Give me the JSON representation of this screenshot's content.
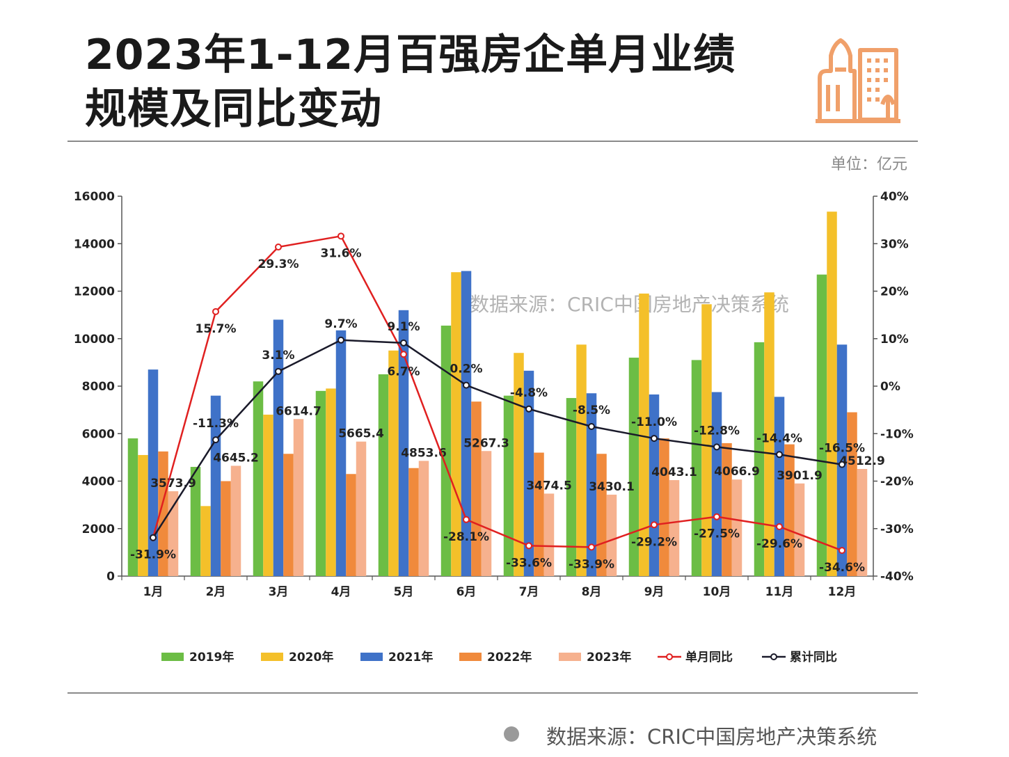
{
  "header": {
    "title_line1": "2023年1-12月百强房企单月业绩",
    "title_line2": "规模及同比变动",
    "unit": "单位：亿元",
    "source": "数据来源：CRIC中国房地产决策系统",
    "watermark": "数据来源：CRIC中国房地产决策系统"
  },
  "colors": {
    "y2019": "#6cbd45",
    "y2020": "#f4c02a",
    "y2021": "#3f72c8",
    "y2022": "#f08a3c",
    "y2023": "#f6b18e",
    "monthly": "#e02020",
    "cumulative": "#1a1a2a",
    "icon": "#f0a06a"
  },
  "chart_data": {
    "type": "bar",
    "title": "2023年1-12月百强房企单月业绩规模及同比变动",
    "categories": [
      "1月",
      "2月",
      "3月",
      "4月",
      "5月",
      "6月",
      "7月",
      "8月",
      "9月",
      "10月",
      "11月",
      "12月"
    ],
    "ylim": [
      0,
      16000
    ],
    "yticks": [
      "0",
      "2000",
      "4000",
      "6000",
      "8000",
      "10000",
      "12000",
      "14000",
      "16000"
    ],
    "y2lim": [
      -40,
      40
    ],
    "y2ticks": [
      "-40%",
      "-30%",
      "-20%",
      "-10%",
      "0%",
      "10%",
      "20%",
      "30%",
      "40%"
    ],
    "series": [
      {
        "name": "2019年",
        "color_key": "y2019",
        "values": [
          5800,
          4600,
          8200,
          7800,
          8500,
          10550,
          7600,
          7500,
          9200,
          9100,
          9850,
          12700
        ]
      },
      {
        "name": "2020年",
        "color_key": "y2020",
        "values": [
          5100,
          2950,
          6800,
          7900,
          9500,
          12800,
          9400,
          9750,
          11900,
          11450,
          11950,
          15350
        ]
      },
      {
        "name": "2021年",
        "color_key": "y2021",
        "values": [
          8700,
          7600,
          10800,
          10350,
          11200,
          12850,
          8650,
          7700,
          7650,
          7750,
          7550,
          9750
        ]
      },
      {
        "name": "2022年",
        "color_key": "y2022",
        "values": [
          5250,
          4000,
          5150,
          4300,
          4550,
          7350,
          5200,
          5150,
          5800,
          5600,
          5550,
          6900
        ]
      },
      {
        "name": "2023年",
        "color_key": "y2023",
        "values": [
          3573.9,
          4645.2,
          6614.7,
          5665.4,
          4853.6,
          5267.3,
          3474.5,
          3430.1,
          4043.1,
          4066.9,
          3901.9,
          4512.9
        ],
        "labels": [
          "3573.9",
          "4645.2",
          "6614.7",
          "5665.4",
          "4853.6",
          "5267.3",
          "3474.5",
          "3430.1",
          "4043.1",
          "4066.9",
          "3901.9",
          "4512.9"
        ]
      }
    ],
    "lines": [
      {
        "name": "单月同比",
        "color_key": "monthly",
        "axis": "right",
        "values": [
          -31.9,
          15.7,
          29.3,
          31.6,
          6.7,
          -28.1,
          -33.6,
          -33.9,
          -29.2,
          -27.5,
          -29.6,
          -34.6
        ],
        "labels": [
          "-31.9%",
          "15.7%",
          "29.3%",
          "31.6%",
          "6.7%",
          "-28.1%",
          "-33.6%",
          "-33.9%",
          "-29.2%",
          "-27.5%",
          "-29.6%",
          "-34.6%"
        ]
      },
      {
        "name": "累计同比",
        "color_key": "cumulative",
        "axis": "right",
        "values": [
          -31.9,
          -11.3,
          3.1,
          9.7,
          9.1,
          0.2,
          -4.8,
          -8.5,
          -11.0,
          -12.8,
          -14.4,
          -16.5
        ],
        "labels": [
          "",
          "-11.3%",
          "3.1%",
          "9.7%",
          "9.1%",
          "0.2%",
          "-4.8%",
          "-8.5%",
          "-11.0%",
          "-12.8%",
          "-14.4%",
          "-16.5%"
        ]
      }
    ],
    "legend": [
      "2019年",
      "2020年",
      "2021年",
      "2022年",
      "2023年",
      "单月同比",
      "累计同比"
    ],
    "legend_position": "bottom"
  }
}
